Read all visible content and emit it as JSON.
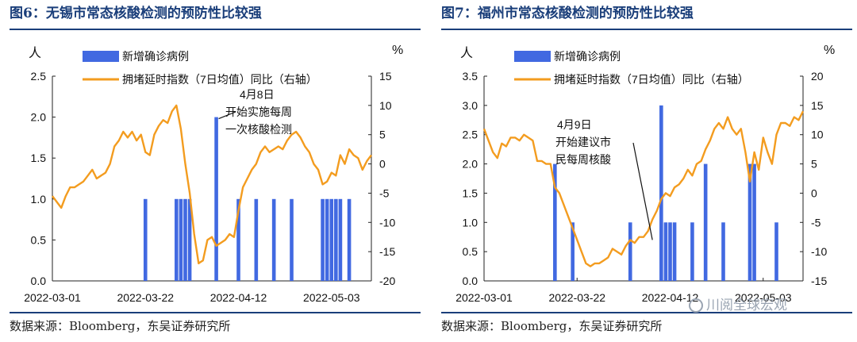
{
  "charts": [
    {
      "figure_title": "图6：无锡市常态核酸检测的预防性比较强",
      "source": "数据来源：Bloomberg，东吴证券研究所",
      "chart_data": {
        "type": "bar+line",
        "left_axis_label": "人",
        "right_axis_label": "%",
        "ylim_left": [
          0,
          2.5
        ],
        "yticks_left": [
          "0.0",
          "0.5",
          "1.0",
          "1.5",
          "2.0",
          "2.5"
        ],
        "ylim_right": [
          -20,
          15
        ],
        "yticks_right": [
          "-20",
          "-15",
          "-10",
          "-5",
          "0",
          "5",
          "10",
          "15"
        ],
        "xlim": [
          0,
          72
        ],
        "xticks": [
          {
            "label": "2022-03-01",
            "x": 0
          },
          {
            "label": "2022-03-22",
            "x": 21
          },
          {
            "label": "2022-04-12",
            "x": 42
          },
          {
            "label": "2022-05-03",
            "x": 63
          }
        ],
        "series": [
          {
            "name": "新增确诊病例",
            "axis": "left",
            "kind": "bar",
            "color": "#4169e1",
            "x": [
              21,
              28,
              29,
              30,
              31,
              37,
              42,
              46,
              50,
              54,
              61,
              62,
              63,
              64,
              65,
              67
            ],
            "values": [
              1,
              1,
              1,
              1,
              1,
              2,
              1,
              1,
              1,
              1,
              1,
              1,
              1,
              1,
              1,
              1
            ]
          },
          {
            "name": "拥堵延时指数（7日均值）同比（右轴）",
            "axis": "right",
            "kind": "line",
            "color": "#f39c1f",
            "x": [
              0,
              1,
              2,
              3,
              4,
              5,
              6,
              7,
              8,
              9,
              10,
              11,
              12,
              13,
              14,
              15,
              16,
              17,
              18,
              19,
              20,
              21,
              22,
              23,
              24,
              25,
              26,
              27,
              28,
              29,
              30,
              31,
              32,
              33,
              34,
              35,
              36,
              37,
              38,
              39,
              40,
              41,
              42,
              43,
              44,
              45,
              46,
              47,
              48,
              49,
              50,
              51,
              52,
              53,
              54,
              55,
              56,
              57,
              58,
              59,
              60,
              61,
              62,
              63,
              64,
              65,
              66,
              67,
              68,
              69,
              70,
              71,
              72
            ],
            "values": [
              -5.5,
              -6.5,
              -7.5,
              -5.5,
              -4,
              -4,
              -3.5,
              -3,
              -2,
              -1,
              -2.5,
              -2,
              -1.5,
              0,
              3,
              4,
              5.5,
              4.5,
              5.5,
              4,
              5,
              2,
              1.5,
              5,
              6.5,
              7.5,
              7,
              9,
              10,
              6,
              0,
              -5,
              -12,
              -17,
              -16.5,
              -13,
              -12.5,
              -14,
              -13.5,
              -13,
              -12,
              -12.5,
              -8,
              -4,
              -2.5,
              -1,
              0,
              2,
              3,
              2,
              2.5,
              3,
              2.5,
              4,
              5,
              5.5,
              4.5,
              3,
              2,
              0,
              -1,
              -3.5,
              -3,
              -1.5,
              -2,
              1.5,
              0,
              2.5,
              1.5,
              1,
              -1,
              0.5,
              1.5
            ]
          }
        ],
        "annotation": {
          "lines": [
            "4月8日",
            "开始实施每周",
            "一次核酸检测"
          ],
          "target": {
            "x": 37,
            "y_left": 2.0
          }
        }
      }
    },
    {
      "figure_title": "图7：福州市常态核酸检测的预防性比较强",
      "source": "数据来源：Bloomberg，东吴证券研究所",
      "chart_data": {
        "type": "bar+line",
        "left_axis_label": "人",
        "right_axis_label": "%",
        "ylim_left": [
          0,
          3.5
        ],
        "yticks_left": [
          "0.0",
          "0.5",
          "1.0",
          "1.5",
          "2.0",
          "2.5",
          "3.0",
          "3.5"
        ],
        "ylim_right": [
          -15,
          20
        ],
        "yticks_right": [
          "-15",
          "-10",
          "-5",
          "0",
          "5",
          "10",
          "15",
          "20"
        ],
        "xlim": [
          0,
          72
        ],
        "xticks": [
          {
            "label": "2022-03-01",
            "x": 0
          },
          {
            "label": "2022-03-22",
            "x": 21
          },
          {
            "label": "2022-04-12",
            "x": 42
          },
          {
            "label": "2022-05-03",
            "x": 63
          }
        ],
        "series": [
          {
            "name": "新增确诊病例",
            "axis": "left",
            "kind": "bar",
            "color": "#4169e1",
            "x": [
              16,
              20,
              33,
              40,
              41,
              42,
              43,
              47,
              50,
              54,
              60,
              61,
              66
            ],
            "values": [
              2,
              1,
              1,
              3,
              1,
              1,
              1,
              1,
              2,
              1,
              2,
              2,
              1
            ]
          },
          {
            "name": "拥堵延时指数（7日均值）同比（右轴）",
            "axis": "right",
            "kind": "line",
            "color": "#f39c1f",
            "x": [
              0,
              1,
              2,
              3,
              4,
              5,
              6,
              7,
              8,
              9,
              10,
              11,
              12,
              13,
              14,
              15,
              16,
              17,
              18,
              19,
              20,
              21,
              22,
              23,
              24,
              25,
              26,
              27,
              28,
              29,
              30,
              31,
              32,
              33,
              34,
              35,
              36,
              37,
              38,
              39,
              40,
              41,
              42,
              43,
              44,
              45,
              46,
              47,
              48,
              49,
              50,
              51,
              52,
              53,
              54,
              55,
              56,
              57,
              58,
              59,
              60,
              61,
              62,
              63,
              64,
              65,
              66,
              67,
              68,
              69,
              70,
              71,
              72
            ],
            "values": [
              11,
              9,
              7,
              6,
              8.5,
              8,
              9.5,
              9.5,
              9,
              10,
              9.5,
              9,
              5.5,
              5.5,
              5,
              5,
              1,
              0,
              -2,
              -4,
              -6,
              -8,
              -10,
              -12,
              -12.5,
              -12,
              -12,
              -11.5,
              -11,
              -9.5,
              -10,
              -10.5,
              -9,
              -8,
              -8.5,
              -7.5,
              -7.5,
              -6.5,
              -4.5,
              -3,
              -1,
              0,
              -0.5,
              1,
              1.5,
              2.5,
              4,
              3,
              5,
              5.5,
              7.5,
              9,
              11,
              12,
              11,
              13,
              11,
              10,
              11,
              7,
              2,
              7,
              4,
              9.5,
              7,
              5,
              10,
              12,
              12,
              11.5,
              13,
              12.5,
              14
            ]
          }
        ],
        "annotation": {
          "lines": [
            "4月9日",
            "开始建议市",
            "民每周核酸"
          ],
          "target": {
            "x": 38,
            "y_right": -8
          }
        }
      }
    }
  ],
  "watermark": "川阅全球宏观"
}
